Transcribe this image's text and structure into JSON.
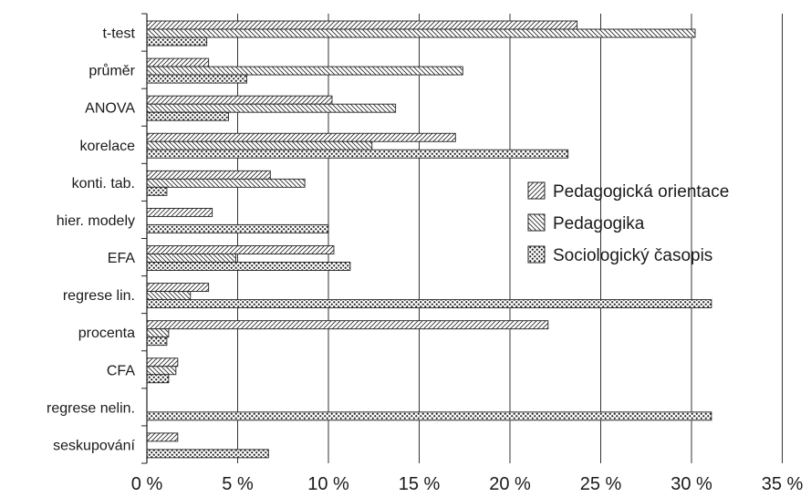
{
  "chart_data": {
    "type": "bar",
    "orientation": "horizontal",
    "categories": [
      "t-test",
      "průměr",
      "ANOVA",
      "korelace",
      "konti. tab.",
      "hier. modely",
      "EFA",
      "regrese lin.",
      "procenta",
      "CFA",
      "regrese nelin.",
      "seskupování"
    ],
    "series": [
      {
        "name": "Pedagogická orientace",
        "values": [
          23.7,
          3.4,
          10.2,
          17.0,
          6.8,
          3.6,
          10.3,
          3.4,
          22.1,
          1.7,
          0,
          1.7
        ]
      },
      {
        "name": "Pedagogika",
        "values": [
          30.2,
          17.4,
          13.7,
          12.4,
          8.7,
          0,
          4.9,
          2.4,
          1.2,
          1.6,
          0,
          0
        ]
      },
      {
        "name": "Sociologický časopis",
        "values": [
          3.3,
          5.5,
          4.5,
          23.2,
          1.1,
          10.0,
          11.2,
          31.1,
          1.1,
          1.2,
          31.1,
          6.7
        ]
      }
    ],
    "xticks": [
      "0 %",
      "5 %",
      "10 %",
      "15 %",
      "20 %",
      "25 %",
      "30 %",
      "35 %"
    ],
    "xlim": [
      0,
      35
    ],
    "grid": "vertical",
    "legend_position": "center-right",
    "colors": {
      "bar_stroke": "#222222",
      "bar_fill": "#ffffff",
      "grid": "#333333",
      "dots": "#222222"
    },
    "patterns": [
      "diagonal-up",
      "diagonal-down",
      "dots"
    ]
  }
}
